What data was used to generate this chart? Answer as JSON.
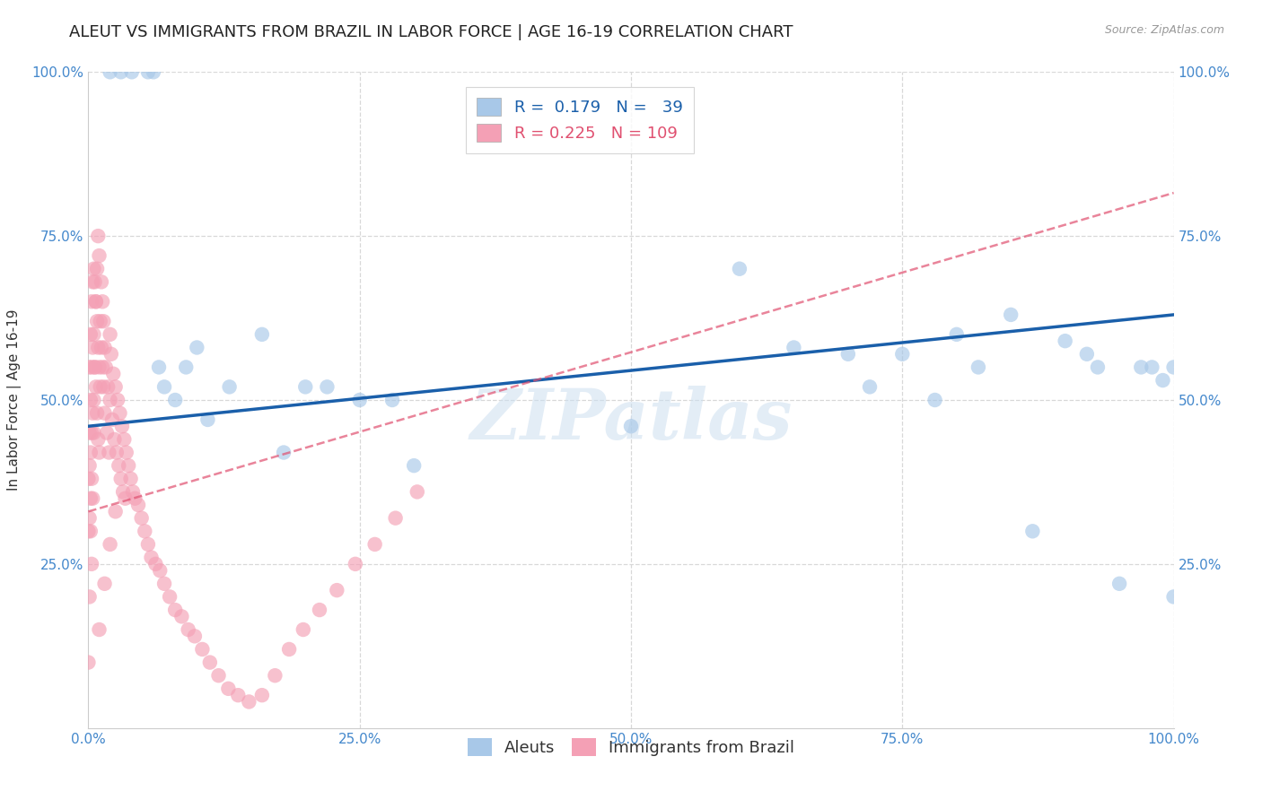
{
  "title": "ALEUT VS IMMIGRANTS FROM BRAZIL IN LABOR FORCE | AGE 16-19 CORRELATION CHART",
  "source": "Source: ZipAtlas.com",
  "ylabel": "In Labor Force | Age 16-19",
  "xlim": [
    0.0,
    1.0
  ],
  "ylim": [
    0.0,
    1.0
  ],
  "xticks": [
    0.0,
    0.25,
    0.5,
    0.75,
    1.0
  ],
  "yticks": [
    0.0,
    0.25,
    0.5,
    0.75,
    1.0
  ],
  "xticklabels": [
    "0.0%",
    "25.0%",
    "50.0%",
    "75.0%",
    "100.0%"
  ],
  "yticklabels": [
    "",
    "25.0%",
    "50.0%",
    "75.0%",
    "100.0%"
  ],
  "background_color": "#ffffff",
  "grid_color": "#d8d8d8",
  "watermark": "ZIPatlas",
  "aleut_color": "#a8c8e8",
  "brazil_color": "#f4a0b5",
  "aleut_R": 0.179,
  "aleut_N": 39,
  "brazil_R": 0.225,
  "brazil_N": 109,
  "aleut_line_color": "#1a5faa",
  "brazil_line_color": "#e05070",
  "tick_color": "#4488cc",
  "title_fontsize": 13,
  "label_fontsize": 11,
  "tick_fontsize": 11,
  "legend_fontsize": 13,
  "aleut_x": [
    0.02,
    0.03,
    0.04,
    0.055,
    0.06,
    0.065,
    0.07,
    0.08,
    0.09,
    0.1,
    0.11,
    0.13,
    0.16,
    0.18,
    0.2,
    0.22,
    0.25,
    0.28,
    0.3,
    0.5,
    0.6,
    0.65,
    0.7,
    0.72,
    0.75,
    0.78,
    0.8,
    0.82,
    0.85,
    0.87,
    0.9,
    0.92,
    0.93,
    0.95,
    0.97,
    0.98,
    0.99,
    1.0,
    1.0
  ],
  "aleut_y": [
    1.0,
    1.0,
    1.0,
    1.0,
    1.0,
    0.55,
    0.52,
    0.5,
    0.55,
    0.58,
    0.47,
    0.52,
    0.6,
    0.42,
    0.52,
    0.52,
    0.5,
    0.5,
    0.4,
    0.46,
    0.7,
    0.58,
    0.57,
    0.52,
    0.57,
    0.5,
    0.6,
    0.55,
    0.63,
    0.3,
    0.59,
    0.57,
    0.55,
    0.22,
    0.55,
    0.55,
    0.53,
    0.55,
    0.2
  ],
  "brazil_x": [
    0.0,
    0.0,
    0.001,
    0.001,
    0.001,
    0.001,
    0.002,
    0.002,
    0.002,
    0.002,
    0.003,
    0.003,
    0.003,
    0.003,
    0.004,
    0.004,
    0.004,
    0.005,
    0.005,
    0.005,
    0.006,
    0.006,
    0.007,
    0.007,
    0.008,
    0.008,
    0.009,
    0.009,
    0.01,
    0.01,
    0.01,
    0.011,
    0.011,
    0.012,
    0.012,
    0.013,
    0.013,
    0.014,
    0.014,
    0.015,
    0.015,
    0.016,
    0.017,
    0.018,
    0.019,
    0.02,
    0.02,
    0.021,
    0.022,
    0.023,
    0.024,
    0.025,
    0.026,
    0.027,
    0.028,
    0.029,
    0.03,
    0.031,
    0.032,
    0.033,
    0.034,
    0.035,
    0.037,
    0.039,
    0.041,
    0.043,
    0.046,
    0.049,
    0.052,
    0.055,
    0.058,
    0.062,
    0.066,
    0.07,
    0.075,
    0.08,
    0.086,
    0.092,
    0.098,
    0.105,
    0.112,
    0.12,
    0.129,
    0.138,
    0.148,
    0.16,
    0.172,
    0.185,
    0.198,
    0.213,
    0.229,
    0.246,
    0.264,
    0.283,
    0.303,
    0.0,
    0.001,
    0.002,
    0.003,
    0.004,
    0.005,
    0.006,
    0.007,
    0.008,
    0.009,
    0.01,
    0.015,
    0.02,
    0.025
  ],
  "brazil_y": [
    0.38,
    0.3,
    0.55,
    0.45,
    0.4,
    0.32,
    0.6,
    0.5,
    0.42,
    0.35,
    0.65,
    0.55,
    0.45,
    0.38,
    0.68,
    0.58,
    0.48,
    0.7,
    0.6,
    0.5,
    0.68,
    0.55,
    0.65,
    0.52,
    0.62,
    0.48,
    0.58,
    0.44,
    0.55,
    0.42,
    0.72,
    0.62,
    0.52,
    0.68,
    0.58,
    0.65,
    0.55,
    0.62,
    0.52,
    0.58,
    0.48,
    0.55,
    0.45,
    0.52,
    0.42,
    0.6,
    0.5,
    0.57,
    0.47,
    0.54,
    0.44,
    0.52,
    0.42,
    0.5,
    0.4,
    0.48,
    0.38,
    0.46,
    0.36,
    0.44,
    0.35,
    0.42,
    0.4,
    0.38,
    0.36,
    0.35,
    0.34,
    0.32,
    0.3,
    0.28,
    0.26,
    0.25,
    0.24,
    0.22,
    0.2,
    0.18,
    0.17,
    0.15,
    0.14,
    0.12,
    0.1,
    0.08,
    0.06,
    0.05,
    0.04,
    0.05,
    0.08,
    0.12,
    0.15,
    0.18,
    0.21,
    0.25,
    0.28,
    0.32,
    0.36,
    0.1,
    0.2,
    0.3,
    0.25,
    0.35,
    0.45,
    0.55,
    0.65,
    0.7,
    0.75,
    0.15,
    0.22,
    0.28,
    0.33
  ],
  "aleut_line_x": [
    0.0,
    1.0
  ],
  "aleut_line_y": [
    0.46,
    0.63
  ],
  "brazil_line_x": [
    0.0,
    0.35
  ],
  "brazil_line_y": [
    0.33,
    0.5
  ]
}
